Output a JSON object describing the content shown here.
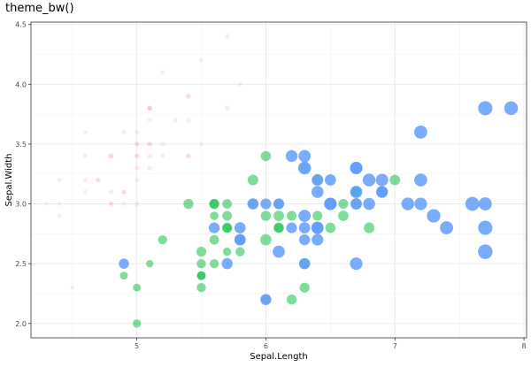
{
  "title": "theme_bw()",
  "chart_data": {
    "type": "scatter",
    "xlabel": "Sepal.Length",
    "ylabel": "Sepal.Width",
    "xlim": [
      4.18,
      8.02
    ],
    "ylim": [
      1.88,
      4.52
    ],
    "x_ticks": [
      5,
      6,
      7,
      8
    ],
    "x_tick_labels": [
      "5",
      "6",
      "7",
      "8"
    ],
    "y_ticks": [
      2.0,
      2.5,
      3.0,
      3.5,
      4.0,
      4.5
    ],
    "y_tick_labels": [
      "2.0",
      "2.5",
      "3.0",
      "3.5",
      "4.0",
      "4.5"
    ],
    "grid": true,
    "legend": "none",
    "series": [
      {
        "color": "#F8766D",
        "opacity": 0.15,
        "points": [
          [
            5.1,
            3.5,
            1.4
          ],
          [
            4.9,
            3.0,
            1.4
          ],
          [
            4.7,
            3.2,
            1.3
          ],
          [
            4.6,
            3.1,
            1.5
          ],
          [
            5.0,
            3.6,
            1.4
          ],
          [
            5.4,
            3.9,
            1.7
          ],
          [
            4.6,
            3.4,
            1.4
          ],
          [
            5.0,
            3.4,
            1.5
          ],
          [
            4.4,
            2.9,
            1.4
          ],
          [
            4.9,
            3.1,
            1.5
          ],
          [
            5.4,
            3.7,
            1.5
          ],
          [
            4.8,
            3.4,
            1.6
          ],
          [
            4.8,
            3.0,
            1.4
          ],
          [
            4.3,
            3.0,
            1.1
          ],
          [
            5.8,
            4.0,
            1.2
          ],
          [
            5.7,
            4.4,
            1.5
          ],
          [
            5.4,
            3.9,
            1.3
          ],
          [
            5.1,
            3.5,
            1.4
          ],
          [
            5.7,
            3.8,
            1.7
          ],
          [
            5.1,
            3.8,
            1.5
          ],
          [
            5.4,
            3.4,
            1.7
          ],
          [
            5.1,
            3.7,
            1.5
          ],
          [
            4.6,
            3.6,
            1.0
          ],
          [
            5.1,
            3.3,
            1.7
          ],
          [
            4.8,
            3.4,
            1.9
          ],
          [
            5.0,
            3.0,
            1.6
          ],
          [
            5.0,
            3.4,
            1.6
          ],
          [
            5.2,
            3.5,
            1.5
          ],
          [
            5.2,
            3.4,
            1.4
          ],
          [
            4.7,
            3.2,
            1.6
          ],
          [
            4.8,
            3.1,
            1.6
          ],
          [
            5.4,
            3.4,
            1.5
          ],
          [
            5.2,
            4.1,
            1.5
          ],
          [
            5.5,
            4.2,
            1.4
          ],
          [
            4.9,
            3.1,
            1.5
          ],
          [
            5.0,
            3.2,
            1.2
          ],
          [
            5.5,
            3.5,
            1.3
          ],
          [
            4.9,
            3.6,
            1.4
          ],
          [
            4.4,
            3.0,
            1.3
          ],
          [
            5.1,
            3.4,
            1.5
          ],
          [
            5.0,
            3.5,
            1.3
          ],
          [
            4.5,
            2.3,
            1.3
          ],
          [
            4.4,
            3.2,
            1.3
          ],
          [
            5.0,
            3.5,
            1.6
          ],
          [
            5.1,
            3.8,
            1.9
          ],
          [
            4.8,
            3.0,
            1.4
          ],
          [
            5.1,
            3.8,
            1.6
          ],
          [
            4.6,
            3.2,
            1.4
          ],
          [
            5.3,
            3.7,
            1.5
          ],
          [
            5.0,
            3.3,
            1.4
          ]
        ]
      },
      {
        "color": "#00BA38",
        "opacity": 0.5,
        "points": [
          [
            7.0,
            3.2,
            4.7
          ],
          [
            6.4,
            3.2,
            4.5
          ],
          [
            6.9,
            3.1,
            4.9
          ],
          [
            5.5,
            2.3,
            4.0
          ],
          [
            6.5,
            2.8,
            4.6
          ],
          [
            5.7,
            2.8,
            4.5
          ],
          [
            6.3,
            3.3,
            4.7
          ],
          [
            4.9,
            2.4,
            3.3
          ],
          [
            6.6,
            2.9,
            4.6
          ],
          [
            5.2,
            2.7,
            3.9
          ],
          [
            5.0,
            2.0,
            3.5
          ],
          [
            5.9,
            3.0,
            4.2
          ],
          [
            6.0,
            2.2,
            4.0
          ],
          [
            6.1,
            2.9,
            4.7
          ],
          [
            5.6,
            2.9,
            3.6
          ],
          [
            6.7,
            3.1,
            4.4
          ],
          [
            5.6,
            3.0,
            4.5
          ],
          [
            5.8,
            2.7,
            4.1
          ],
          [
            6.2,
            2.2,
            4.5
          ],
          [
            5.6,
            2.5,
            3.9
          ],
          [
            5.9,
            3.2,
            4.8
          ],
          [
            6.1,
            2.8,
            4.0
          ],
          [
            6.3,
            2.5,
            4.9
          ],
          [
            6.1,
            2.8,
            4.7
          ],
          [
            6.4,
            2.9,
            4.3
          ],
          [
            6.6,
            3.0,
            4.4
          ],
          [
            6.8,
            2.8,
            4.8
          ],
          [
            6.7,
            3.0,
            5.0
          ],
          [
            6.0,
            2.9,
            4.5
          ],
          [
            5.7,
            2.6,
            3.5
          ],
          [
            5.5,
            2.4,
            3.8
          ],
          [
            5.5,
            2.4,
            3.7
          ],
          [
            5.8,
            2.7,
            3.9
          ],
          [
            6.0,
            2.7,
            5.1
          ],
          [
            5.4,
            3.0,
            4.5
          ],
          [
            6.0,
            3.4,
            4.5
          ],
          [
            6.7,
            3.1,
            4.7
          ],
          [
            6.3,
            2.3,
            4.4
          ],
          [
            5.6,
            3.0,
            4.1
          ],
          [
            5.5,
            2.5,
            4.0
          ],
          [
            5.5,
            2.6,
            4.4
          ],
          [
            6.1,
            3.0,
            4.6
          ],
          [
            5.8,
            2.6,
            4.0
          ],
          [
            5.0,
            2.3,
            3.3
          ],
          [
            5.6,
            2.7,
            4.2
          ],
          [
            5.7,
            3.0,
            4.2
          ],
          [
            5.7,
            2.9,
            4.2
          ],
          [
            6.2,
            2.9,
            4.3
          ],
          [
            5.1,
            2.5,
            3.0
          ],
          [
            5.7,
            2.8,
            4.1
          ]
        ]
      },
      {
        "color": "#619CFF",
        "opacity": 0.85,
        "points": [
          [
            6.3,
            3.3,
            6.0
          ],
          [
            5.8,
            2.7,
            5.1
          ],
          [
            7.1,
            3.0,
            5.9
          ],
          [
            6.3,
            2.9,
            5.6
          ],
          [
            6.5,
            3.0,
            5.8
          ],
          [
            7.6,
            3.0,
            6.6
          ],
          [
            4.9,
            2.5,
            4.5
          ],
          [
            7.3,
            2.9,
            6.3
          ],
          [
            6.7,
            2.5,
            5.8
          ],
          [
            7.2,
            3.6,
            6.1
          ],
          [
            6.5,
            3.2,
            5.1
          ],
          [
            6.4,
            2.7,
            5.3
          ],
          [
            6.8,
            3.0,
            5.5
          ],
          [
            5.7,
            2.5,
            5.0
          ],
          [
            5.8,
            2.8,
            5.1
          ],
          [
            6.4,
            3.2,
            5.3
          ],
          [
            6.5,
            3.0,
            5.5
          ],
          [
            7.7,
            3.8,
            6.7
          ],
          [
            7.7,
            2.6,
            6.9
          ],
          [
            6.0,
            2.2,
            5.0
          ],
          [
            6.9,
            3.2,
            5.7
          ],
          [
            5.6,
            2.8,
            4.9
          ],
          [
            7.7,
            2.8,
            6.7
          ],
          [
            6.3,
            2.7,
            4.9
          ],
          [
            6.7,
            3.3,
            5.7
          ],
          [
            7.2,
            3.2,
            6.0
          ],
          [
            6.2,
            2.8,
            4.8
          ],
          [
            6.1,
            3.0,
            4.9
          ],
          [
            6.4,
            2.8,
            5.6
          ],
          [
            7.2,
            3.0,
            5.8
          ],
          [
            7.4,
            2.8,
            6.1
          ],
          [
            7.9,
            3.8,
            6.4
          ],
          [
            6.4,
            2.8,
            5.6
          ],
          [
            6.3,
            2.8,
            5.1
          ],
          [
            6.1,
            2.6,
            5.6
          ],
          [
            7.7,
            3.0,
            6.1
          ],
          [
            6.3,
            3.4,
            5.6
          ],
          [
            6.4,
            3.1,
            5.5
          ],
          [
            6.0,
            3.0,
            4.8
          ],
          [
            6.9,
            3.1,
            5.4
          ],
          [
            6.7,
            3.1,
            5.6
          ],
          [
            6.9,
            3.1,
            5.1
          ],
          [
            5.8,
            2.7,
            5.1
          ],
          [
            6.8,
            3.2,
            5.9
          ],
          [
            6.7,
            3.3,
            5.7
          ],
          [
            6.7,
            3.0,
            5.2
          ],
          [
            6.3,
            2.5,
            5.0
          ],
          [
            6.5,
            3.0,
            5.2
          ],
          [
            6.2,
            3.4,
            5.4
          ],
          [
            5.9,
            3.0,
            5.1
          ]
        ]
      }
    ]
  }
}
